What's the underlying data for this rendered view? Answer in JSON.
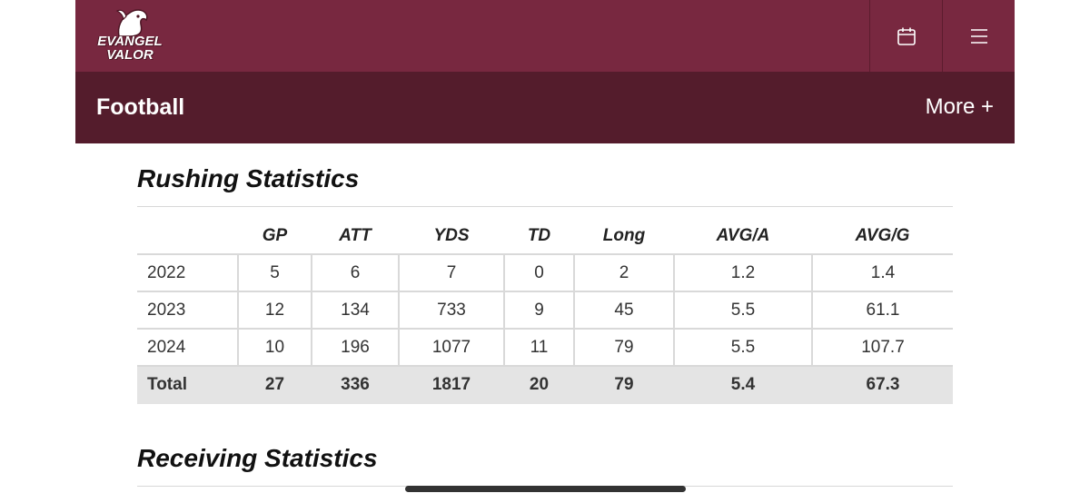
{
  "header": {
    "logo": {
      "line1": "EVANGEL",
      "line2": "VALOR"
    },
    "calendar_icon": "calendar-icon",
    "menu_icon": "hamburger-menu-icon",
    "brand_color": "#782840",
    "subbar_color": "#541c2c"
  },
  "subnav": {
    "title": "Football",
    "more_label": "More +"
  },
  "rushing": {
    "title": "Rushing Statistics",
    "columns": [
      "",
      "GP",
      "ATT",
      "YDS",
      "TD",
      "Long",
      "AVG/A",
      "AVG/G"
    ],
    "rows": [
      [
        "2022",
        "5",
        "6",
        "7",
        "0",
        "2",
        "1.2",
        "1.4"
      ],
      [
        "2023",
        "12",
        "134",
        "733",
        "9",
        "45",
        "5.5",
        "61.1"
      ],
      [
        "2024",
        "10",
        "196",
        "1077",
        "11",
        "79",
        "5.5",
        "107.7"
      ]
    ],
    "total": [
      "Total",
      "27",
      "336",
      "1817",
      "20",
      "79",
      "5.4",
      "67.3"
    ]
  },
  "receiving": {
    "title": "Receiving Statistics"
  }
}
